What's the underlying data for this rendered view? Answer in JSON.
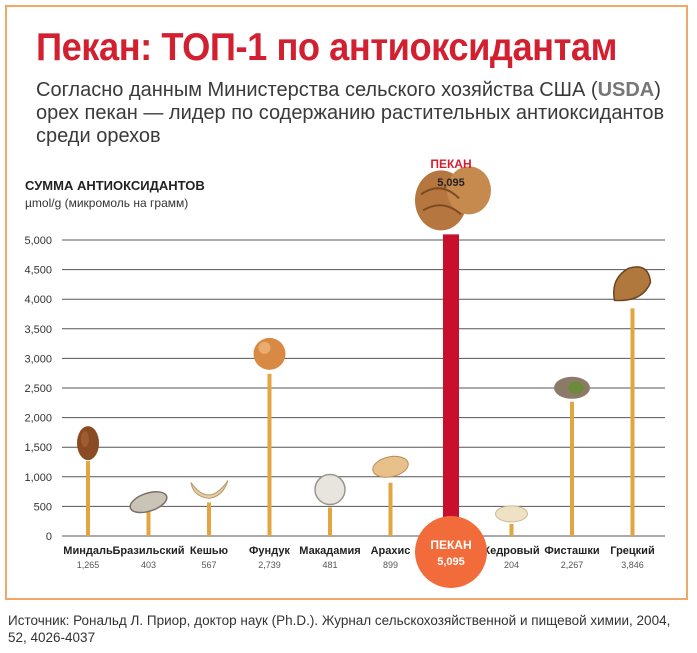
{
  "header": {
    "title": "Пекан: ТОП-1 по антиоксидантам",
    "subtitle_before": "Согласно данным Министерства сельского хозяйства США (",
    "subtitle_usda": "USDA",
    "subtitle_after": ") орех пекан — лидер по содержанию растительных антиоксидантов среди орехов"
  },
  "colors": {
    "title": "#d22030",
    "bar": "#e2a53f",
    "highlight_bar": "#c8102e",
    "highlight_circle": "#f26b3a",
    "frame": "#f0a868"
  },
  "chart_data": {
    "type": "bar",
    "ylabel": "СУММА АНТИОКСИДАНТОВ",
    "yunit": "µmol/g (микромоль на грамм)",
    "ylim": [
      0,
      5000
    ],
    "yticks": [
      "0",
      "500",
      "1,000",
      "1,500",
      "2,000",
      "2,500",
      "3,000",
      "3,500",
      "4,000",
      "4,500",
      "5,000"
    ],
    "grid": true,
    "categories": [
      "Миндаль",
      "Бразильский",
      "Кешью",
      "Фундук",
      "Макадамия",
      "Арахис",
      "ПЕКАН",
      "Кедровый",
      "Фисташки",
      "Грецкий"
    ],
    "values": [
      1265,
      403,
      567,
      2739,
      481,
      899,
      5095,
      204,
      2267,
      3846
    ],
    "value_labels": [
      "1,265",
      "403",
      "567",
      "2,739",
      "481",
      "899",
      "5,095",
      "204",
      "2,267",
      "3,846"
    ],
    "highlight": {
      "index": 6,
      "top_name": "ПЕКАН",
      "top_value": "5,095",
      "circle_name": "ПЕКАН",
      "circle_value": "5,095"
    }
  },
  "footer": {
    "source": "Источник: Рональд Л. Приор, доктор наук (Ph.D.). Журнал сельскохозяйственной и пищевой химии, 2004, 52, 4026-4037"
  }
}
